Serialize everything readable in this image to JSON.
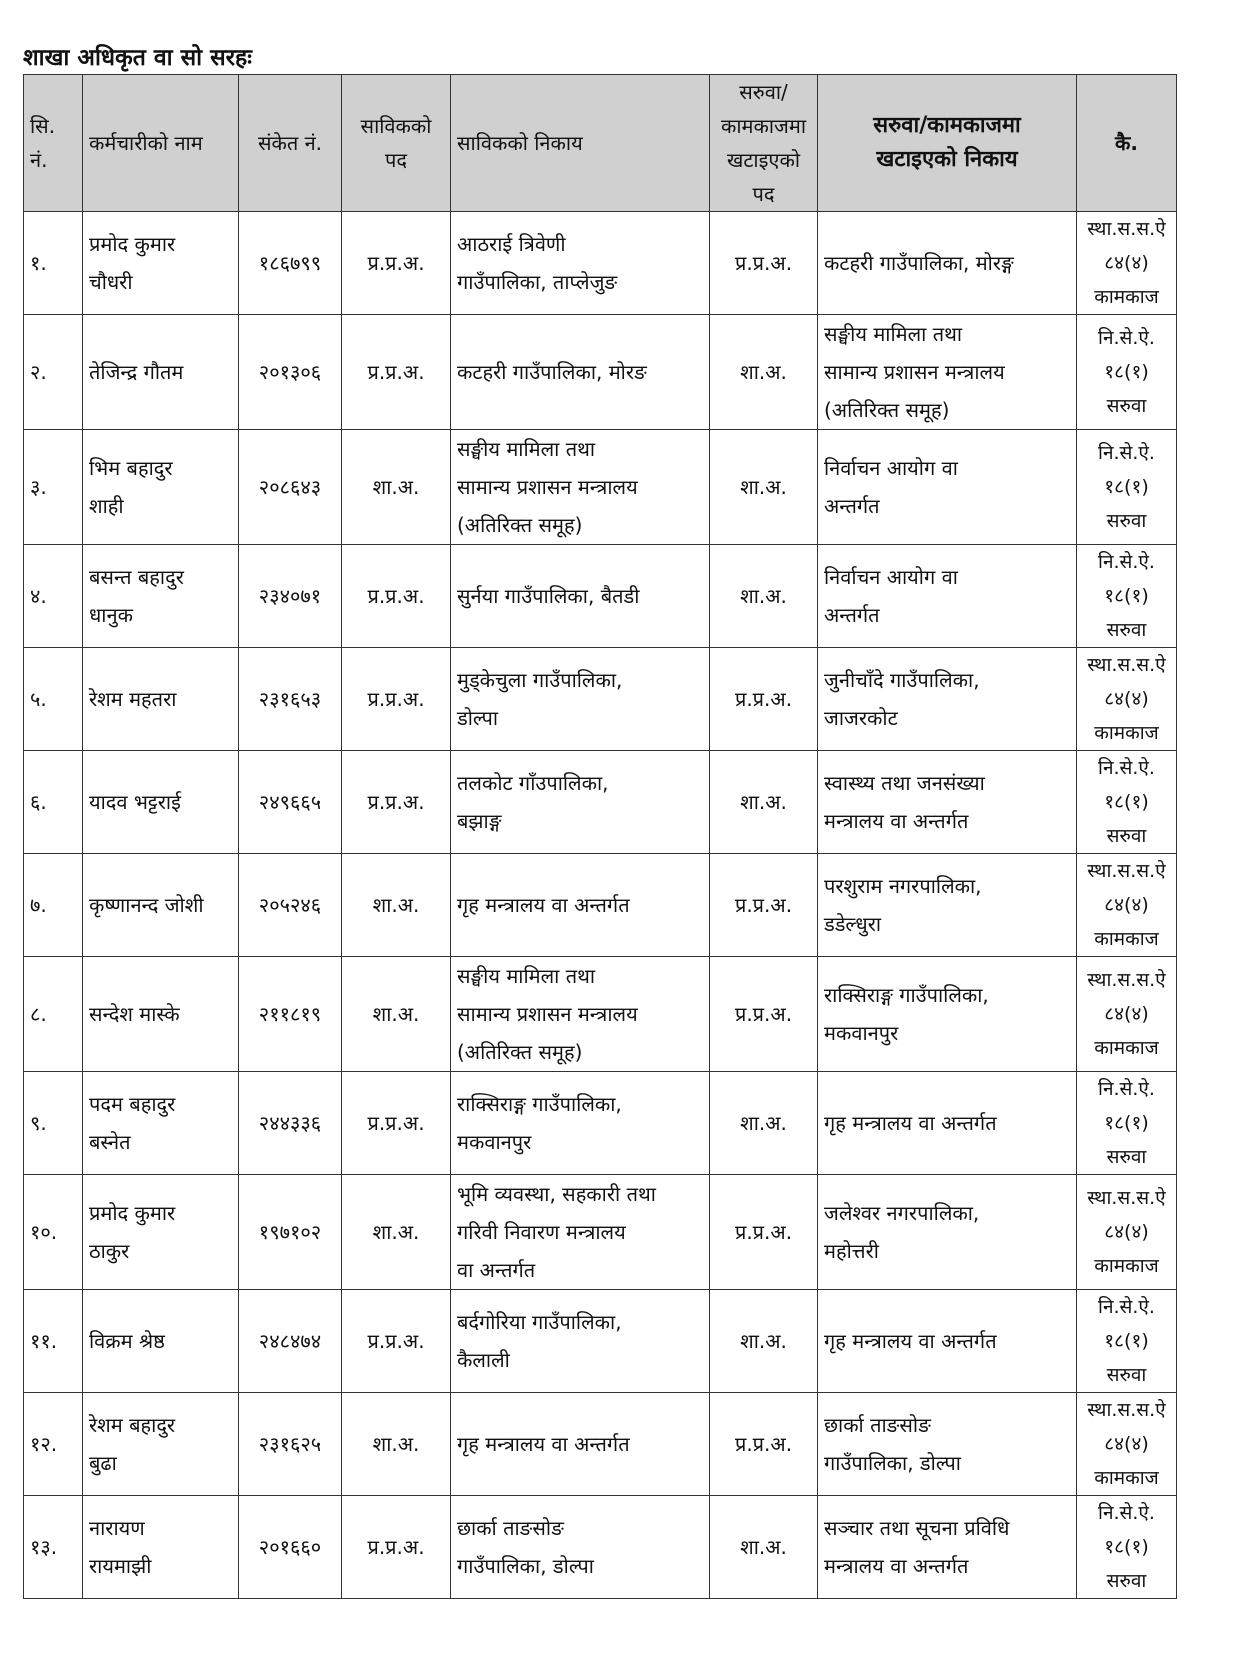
{
  "title": "शाखा अधिकृत वा सो सरहः",
  "headers": {
    "sn": [
      "सि.",
      "नं."
    ],
    "name": "कर्मचारीको नाम",
    "code": "संकेत नं.",
    "old_post": [
      "साविकको",
      "पद"
    ],
    "old_office": "साविकको निकाय",
    "new_post": [
      "सरुवा/",
      "कामकाजमा",
      "खटाइएको",
      "पद"
    ],
    "new_office": [
      "सरुवा/कामकाजमा",
      "खटाइएको निकाय"
    ],
    "remarks": "कै."
  },
  "rows": [
    {
      "sn": "१.",
      "name": [
        "प्रमोद कुमार",
        "चौधरी"
      ],
      "code": "१८६७९९",
      "old_post": "प्र.प्र.अ.",
      "old_office": [
        "आठराई त्रिवेणी",
        "गाउँपालिका, ताप्लेजुङ"
      ],
      "new_post": "प्र.प्र.अ.",
      "new_office": [
        "कटहरी गाउँपालिका, मोरङ्ग"
      ],
      "remarks": [
        "स्था.स.स.ऐ",
        "८४(४)",
        "कामकाज"
      ]
    },
    {
      "sn": "२.",
      "name": [
        "तेजिन्द्र गौतम"
      ],
      "code": "२०१३०६",
      "old_post": "प्र.प्र.अ.",
      "old_office": [
        "कटहरी गाउँपालिका, मोरङ"
      ],
      "new_post": "शा.अ.",
      "new_office": [
        "सङ्घीय मामिला तथा",
        "सामान्य प्रशासन मन्त्रालय",
        "(अतिरिक्त समूह)"
      ],
      "remarks": [
        "नि.से.ऐ.",
        "१८(१)",
        "सरुवा"
      ]
    },
    {
      "sn": "३.",
      "name": [
        "भिम बहादुर",
        "शाही"
      ],
      "code": "२०८६४३",
      "old_post": "शा.अ.",
      "old_office": [
        "सङ्घीय मामिला तथा",
        "सामान्य प्रशासन मन्त्रालय",
        "(अतिरिक्त समूह)"
      ],
      "new_post": "शा.अ.",
      "new_office": [
        "निर्वाचन आयोग वा",
        "अन्तर्गत"
      ],
      "remarks": [
        "नि.से.ऐ.",
        "१८(१)",
        "सरुवा"
      ]
    },
    {
      "sn": "४.",
      "name": [
        "बसन्त बहादुर",
        "धानुक"
      ],
      "code": "२३४०७१",
      "old_post": "प्र.प्र.अ.",
      "old_office": [
        "सुर्नया गाउँपालिका, बैतडी"
      ],
      "new_post": "शा.अ.",
      "new_office": [
        "निर्वाचन आयोग वा",
        "अन्तर्गत"
      ],
      "remarks": [
        "नि.से.ऐ.",
        "१८(१)",
        "सरुवा"
      ]
    },
    {
      "sn": "५.",
      "name": [
        "रेशम महतरा"
      ],
      "code": "२३१६५३",
      "old_post": "प्र.प्र.अ.",
      "old_office": [
        "मुड्केचुला गाउँपालिका,",
        "डोल्पा"
      ],
      "new_post": "प्र.प्र.अ.",
      "new_office": [
        "जुनीचाँदे गाउँपालिका,",
        "जाजरकोट"
      ],
      "remarks": [
        "स्था.स.स.ऐ",
        "८४(४)",
        "कामकाज"
      ]
    },
    {
      "sn": "६.",
      "name": [
        "यादव भट्टराई"
      ],
      "code": "२४९६६५",
      "old_post": "प्र.प्र.अ.",
      "old_office": [
        "तलकोट गाँउपालिका,",
        "बझाङ्ग"
      ],
      "new_post": "शा.अ.",
      "new_office": [
        "स्वास्थ्य तथा जनसंख्या",
        "मन्त्रालय वा अन्तर्गत"
      ],
      "remarks": [
        "नि.से.ऐ.",
        "१८(१)",
        "सरुवा"
      ]
    },
    {
      "sn": "७.",
      "name": [
        "कृष्णानन्द जोशी"
      ],
      "code": "२०५२४६",
      "old_post": "शा.अ.",
      "old_office": [
        "गृह मन्त्रालय वा अन्तर्गत"
      ],
      "new_post": "प्र.प्र.अ.",
      "new_office": [
        "परशुराम नगरपालिका,",
        "डडेल्धुरा"
      ],
      "remarks": [
        "स्था.स.स.ऐ",
        "८४(४)",
        "कामकाज"
      ]
    },
    {
      "sn": "८.",
      "name": [
        "सन्देश मास्के"
      ],
      "code": "२११८१९",
      "old_post": "शा.अ.",
      "old_office": [
        "सङ्घीय मामिला तथा",
        "सामान्य प्रशासन मन्त्रालय",
        "(अतिरिक्त समूह)"
      ],
      "new_post": "प्र.प्र.अ.",
      "new_office": [
        "राक्सिराङ्ग गाउँपालिका,",
        "मकवानपुर"
      ],
      "remarks": [
        "स्था.स.स.ऐ",
        "८४(४)",
        "कामकाज"
      ]
    },
    {
      "sn": "९.",
      "name": [
        "पदम बहादुर",
        "बस्नेत"
      ],
      "code": "२४४३३६",
      "old_post": "प्र.प्र.अ.",
      "old_office": [
        "राक्सिराङ्ग गाउँपालिका,",
        "मकवानपुर"
      ],
      "new_post": "शा.अ.",
      "new_office": [
        "गृह मन्त्रालय वा अन्तर्गत"
      ],
      "remarks": [
        "नि.से.ऐ.",
        "१८(१)",
        "सरुवा"
      ]
    },
    {
      "sn": "१०.",
      "name": [
        "प्रमोद कुमार",
        "ठाकुर"
      ],
      "code": "१९७१०२",
      "old_post": "शा.अ.",
      "old_office": [
        "भूमि व्यवस्था, सहकारी तथा",
        "गरिवी निवारण मन्त्रालय",
        "वा अन्तर्गत"
      ],
      "new_post": "प्र.प्र.अ.",
      "new_office": [
        "जलेश्वर नगरपालिका,",
        "महोत्तरी"
      ],
      "remarks": [
        "स्था.स.स.ऐ",
        "८४(४)",
        "कामकाज"
      ]
    },
    {
      "sn": "११.",
      "name": [
        "विक्रम श्रेष्ठ"
      ],
      "code": "२४८४७४",
      "old_post": "प्र.प्र.अ.",
      "old_office": [
        "बर्दगोरिया गाउँपालिका,",
        "कैलाली"
      ],
      "new_post": "शा.अ.",
      "new_office": [
        "गृह मन्त्रालय वा अन्तर्गत"
      ],
      "remarks": [
        "नि.से.ऐ.",
        "१८(१)",
        "सरुवा"
      ]
    },
    {
      "sn": "१२.",
      "name": [
        "रेशम बहादुर",
        "बुढा"
      ],
      "code": "२३१६२५",
      "old_post": "शा.अ.",
      "old_office": [
        "गृह मन्त्रालय वा अन्तर्गत"
      ],
      "new_post": "प्र.प्र.अ.",
      "new_office": [
        "छार्का ताङसोङ",
        "गाउँपालिका, डोल्पा"
      ],
      "remarks": [
        "स्था.स.स.ऐ",
        "८४(४)",
        "कामकाज"
      ]
    },
    {
      "sn": "१३.",
      "name": [
        "नारायण",
        "रायमाझी"
      ],
      "code": "२०१६६०",
      "old_post": "प्र.प्र.अ.",
      "old_office": [
        "छार्का ताङसोङ",
        "गाउँपालिका, डोल्पा"
      ],
      "new_post": "शा.अ.",
      "new_office": [
        "सञ्चार तथा सूचना प्रविधि",
        "मन्त्रालय वा अन्तर्गत"
      ],
      "remarks": [
        "नि.से.ऐ.",
        "१८(१)",
        "सरुवा"
      ]
    }
  ]
}
